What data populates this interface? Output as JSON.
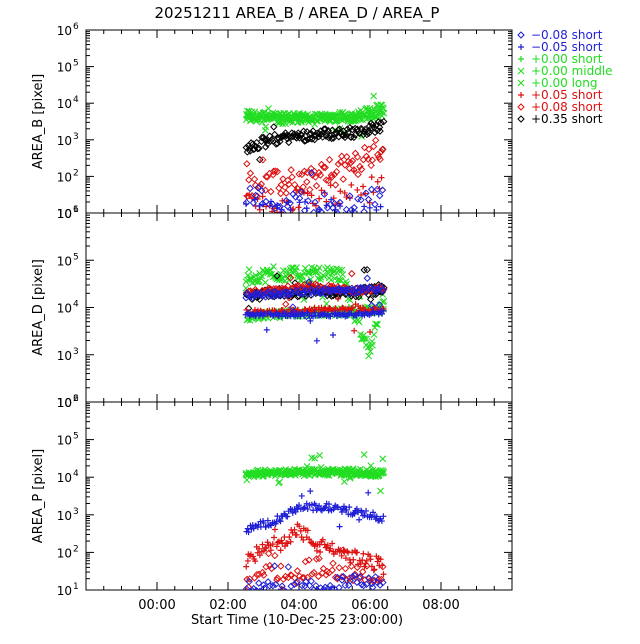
{
  "title": "20251211 AREA_B / AREA_D / AREA_P",
  "xlabel": "Start Time (10-Dec-25 23:00:00)",
  "colors": {
    "blue": "#1f1fd6",
    "green": "#22dd22",
    "red": "#dd1111",
    "black": "#000000"
  },
  "legend": [
    {
      "symbol": "diamond",
      "color": "blue",
      "label": "−0.08 short"
    },
    {
      "symbol": "plus",
      "color": "blue",
      "label": "−0.05 short"
    },
    {
      "symbol": "plus",
      "color": "green",
      "label": "+0.00 short"
    },
    {
      "symbol": "cross",
      "color": "green",
      "label": "+0.00 middle"
    },
    {
      "symbol": "cross",
      "color": "green",
      "label": "+0.00 long"
    },
    {
      "symbol": "plus",
      "color": "red",
      "label": "+0.05 short"
    },
    {
      "symbol": "diamond",
      "color": "red",
      "label": "+0.08 short"
    },
    {
      "symbol": "diamond",
      "color": "black",
      "label": "+0.35 short"
    }
  ],
  "chart_data": [
    {
      "type": "scatter",
      "ylabel": "AREA_B [pixel]",
      "yscale": "log",
      "ylim_exp": [
        1,
        6
      ],
      "ytick_labels": [
        "10^1",
        "10^2",
        "10^3",
        "10^4",
        "10^5",
        "10^6"
      ],
      "xlim_hours": [
        -1,
        11
      ],
      "xtick_labels": [
        "00:00",
        "02:00",
        "04:00",
        "06:00",
        "08:00"
      ],
      "xtick_hours": [
        1,
        3,
        5,
        7,
        9
      ],
      "series": [
        {
          "legend_index": 3,
          "trend": [
            [
              3.5,
              3.6
            ],
            [
              4.5,
              3.55
            ],
            [
              5.5,
              3.6
            ],
            [
              6.5,
              3.65
            ],
            [
              7.4,
              3.9
            ]
          ],
          "spread": 0.12,
          "n": 140
        },
        {
          "legend_index": 4,
          "trend": [
            [
              3.5,
              3.7
            ],
            [
              4.5,
              3.65
            ],
            [
              5.5,
              3.6
            ],
            [
              6.5,
              3.6
            ],
            [
              7.4,
              3.7
            ]
          ],
          "spread": 0.1,
          "n": 140
        },
        {
          "legend_index": 7,
          "trend": [
            [
              3.5,
              2.8
            ],
            [
              4.5,
              3.05
            ],
            [
              5.5,
              3.15
            ],
            [
              6.5,
              3.2
            ],
            [
              7.4,
              3.4
            ]
          ],
          "spread": 0.15,
          "n": 130
        },
        {
          "legend_index": 6,
          "trend": [
            [
              3.5,
              1.8
            ],
            [
              4.5,
              1.8
            ],
            [
              5.5,
              2.0
            ],
            [
              6.5,
              2.3
            ],
            [
              7.4,
              2.8
            ]
          ],
          "spread": 0.35,
          "n": 90
        },
        {
          "legend_index": 5,
          "trend": [
            [
              3.5,
              1.2
            ],
            [
              4.5,
              1.3
            ],
            [
              5.5,
              1.4
            ],
            [
              6.5,
              1.6
            ],
            [
              7.4,
              2.0
            ]
          ],
          "spread": 0.3,
          "n": 50
        },
        {
          "legend_index": 0,
          "trend": [
            [
              3.5,
              1.5
            ],
            [
              4.5,
              1.3
            ],
            [
              5.5,
              1.3
            ],
            [
              6.5,
              1.2
            ],
            [
              7.4,
              1.5
            ]
          ],
          "spread": 0.3,
          "n": 50
        },
        {
          "legend_index": 1,
          "trend": [
            [
              3.5,
              1.4
            ],
            [
              4.5,
              1.2
            ],
            [
              5.5,
              1.1
            ],
            [
              6.5,
              1.1
            ],
            [
              7.4,
              1.3
            ]
          ],
          "spread": 0.2,
          "n": 25
        }
      ]
    },
    {
      "type": "scatter",
      "ylabel": "AREA_D [pixel]",
      "yscale": "log",
      "ylim_exp": [
        2,
        6
      ],
      "ytick_labels": [
        "10^2",
        "10^3",
        "10^4",
        "10^5",
        "10^6"
      ],
      "xlim_hours": [
        -1,
        11
      ],
      "xtick_labels": [
        "00:00",
        "02:00",
        "04:00",
        "06:00",
        "08:00"
      ],
      "xtick_hours": [
        1,
        3,
        5,
        7,
        9
      ],
      "series": [
        {
          "legend_index": 3,
          "trend": [
            [
              3.5,
              4.65
            ],
            [
              4.5,
              4.7
            ],
            [
              5.5,
              4.7
            ],
            [
              6.2,
              4.7
            ],
            [
              6.5,
              4.0
            ],
            [
              7.0,
              3.0
            ],
            [
              7.4,
              4.3
            ]
          ],
          "spread": 0.15,
          "n": 140
        },
        {
          "legend_index": 4,
          "trend": [
            [
              3.5,
              3.8
            ],
            [
              4.5,
              3.85
            ],
            [
              5.5,
              3.9
            ],
            [
              6.5,
              3.9
            ],
            [
              7.4,
              4.0
            ]
          ],
          "spread": 0.08,
          "n": 120
        },
        {
          "legend_index": 7,
          "trend": [
            [
              3.5,
              4.2
            ],
            [
              4.3,
              4.3
            ],
            [
              5.5,
              4.35
            ],
            [
              6.5,
              4.3
            ],
            [
              7.4,
              4.4
            ]
          ],
          "spread": 0.1,
          "n": 130
        },
        {
          "legend_index": 6,
          "trend": [
            [
              3.5,
              4.3
            ],
            [
              4.5,
              4.4
            ],
            [
              5.5,
              4.45
            ],
            [
              6.5,
              4.35
            ],
            [
              7.4,
              4.4
            ]
          ],
          "spread": 0.06,
          "n": 110
        },
        {
          "legend_index": 5,
          "trend": [
            [
              3.5,
              3.9
            ],
            [
              4.5,
              3.9
            ],
            [
              5.5,
              3.95
            ],
            [
              6.5,
              3.95
            ],
            [
              7.4,
              3.95
            ]
          ],
          "spread": 0.05,
          "n": 110
        },
        {
          "legend_index": 0,
          "trend": [
            [
              3.5,
              4.25
            ],
            [
              4.5,
              4.3
            ],
            [
              5.5,
              4.35
            ],
            [
              6.5,
              4.35
            ],
            [
              7.4,
              4.4
            ]
          ],
          "spread": 0.06,
          "n": 110
        },
        {
          "legend_index": 1,
          "trend": [
            [
              3.5,
              3.85
            ],
            [
              4.5,
              3.85
            ],
            [
              5.5,
              3.85
            ],
            [
              6.5,
              3.85
            ],
            [
              7.4,
              3.9
            ]
          ],
          "spread": 0.04,
          "n": 110
        }
      ]
    },
    {
      "type": "scatter",
      "ylabel": "AREA_P [pixel]",
      "yscale": "log",
      "ylim_exp": [
        1,
        6
      ],
      "ytick_labels": [
        "10^1",
        "10^2",
        "10^3",
        "10^4",
        "10^5",
        "10^6"
      ],
      "xlim_hours": [
        -1,
        11
      ],
      "xtick_labels": [
        "00:00",
        "02:00",
        "04:00",
        "06:00",
        "08:00"
      ],
      "xtick_hours": [
        1,
        3,
        5,
        7,
        9
      ],
      "series": [
        {
          "legend_index": 3,
          "trend": [
            [
              3.5,
              4.1
            ],
            [
              4.5,
              4.15
            ],
            [
              5.5,
              4.15
            ],
            [
              6.5,
              4.15
            ],
            [
              7.4,
              4.1
            ]
          ],
          "spread": 0.08,
          "n": 140
        },
        {
          "legend_index": 4,
          "trend": [
            [
              3.5,
              4.05
            ],
            [
              4.5,
              4.1
            ],
            [
              5.5,
              4.1
            ],
            [
              6.5,
              4.1
            ],
            [
              7.4,
              4.05
            ]
          ],
          "spread": 0.06,
          "n": 120
        },
        {
          "legend_index": 1,
          "trend": [
            [
              3.5,
              2.6
            ],
            [
              4.5,
              2.9
            ],
            [
              5.0,
              3.2
            ],
            [
              6.0,
              3.2
            ],
            [
              7.4,
              2.9
            ]
          ],
          "spread": 0.1,
          "n": 110
        },
        {
          "legend_index": 5,
          "trend": [
            [
              3.5,
              1.8
            ],
            [
              4.5,
              2.3
            ],
            [
              5.0,
              2.6
            ],
            [
              5.5,
              2.2
            ],
            [
              6.5,
              1.9
            ],
            [
              7.4,
              1.6
            ]
          ],
          "spread": 0.2,
          "n": 110
        },
        {
          "legend_index": 6,
          "trend": [
            [
              3.5,
              1.3
            ],
            [
              4.5,
              1.5
            ],
            [
              5.5,
              1.6
            ],
            [
              6.5,
              1.5
            ],
            [
              7.4,
              1.4
            ]
          ],
          "spread": 0.25,
          "n": 70
        },
        {
          "legend_index": 0,
          "trend": [
            [
              3.5,
              1.1
            ],
            [
              4.5,
              1.05
            ],
            [
              5.5,
              1.1
            ],
            [
              6.5,
              1.25
            ],
            [
              7.4,
              1.2
            ]
          ],
          "spread": 0.15,
          "n": 60
        }
      ]
    }
  ]
}
